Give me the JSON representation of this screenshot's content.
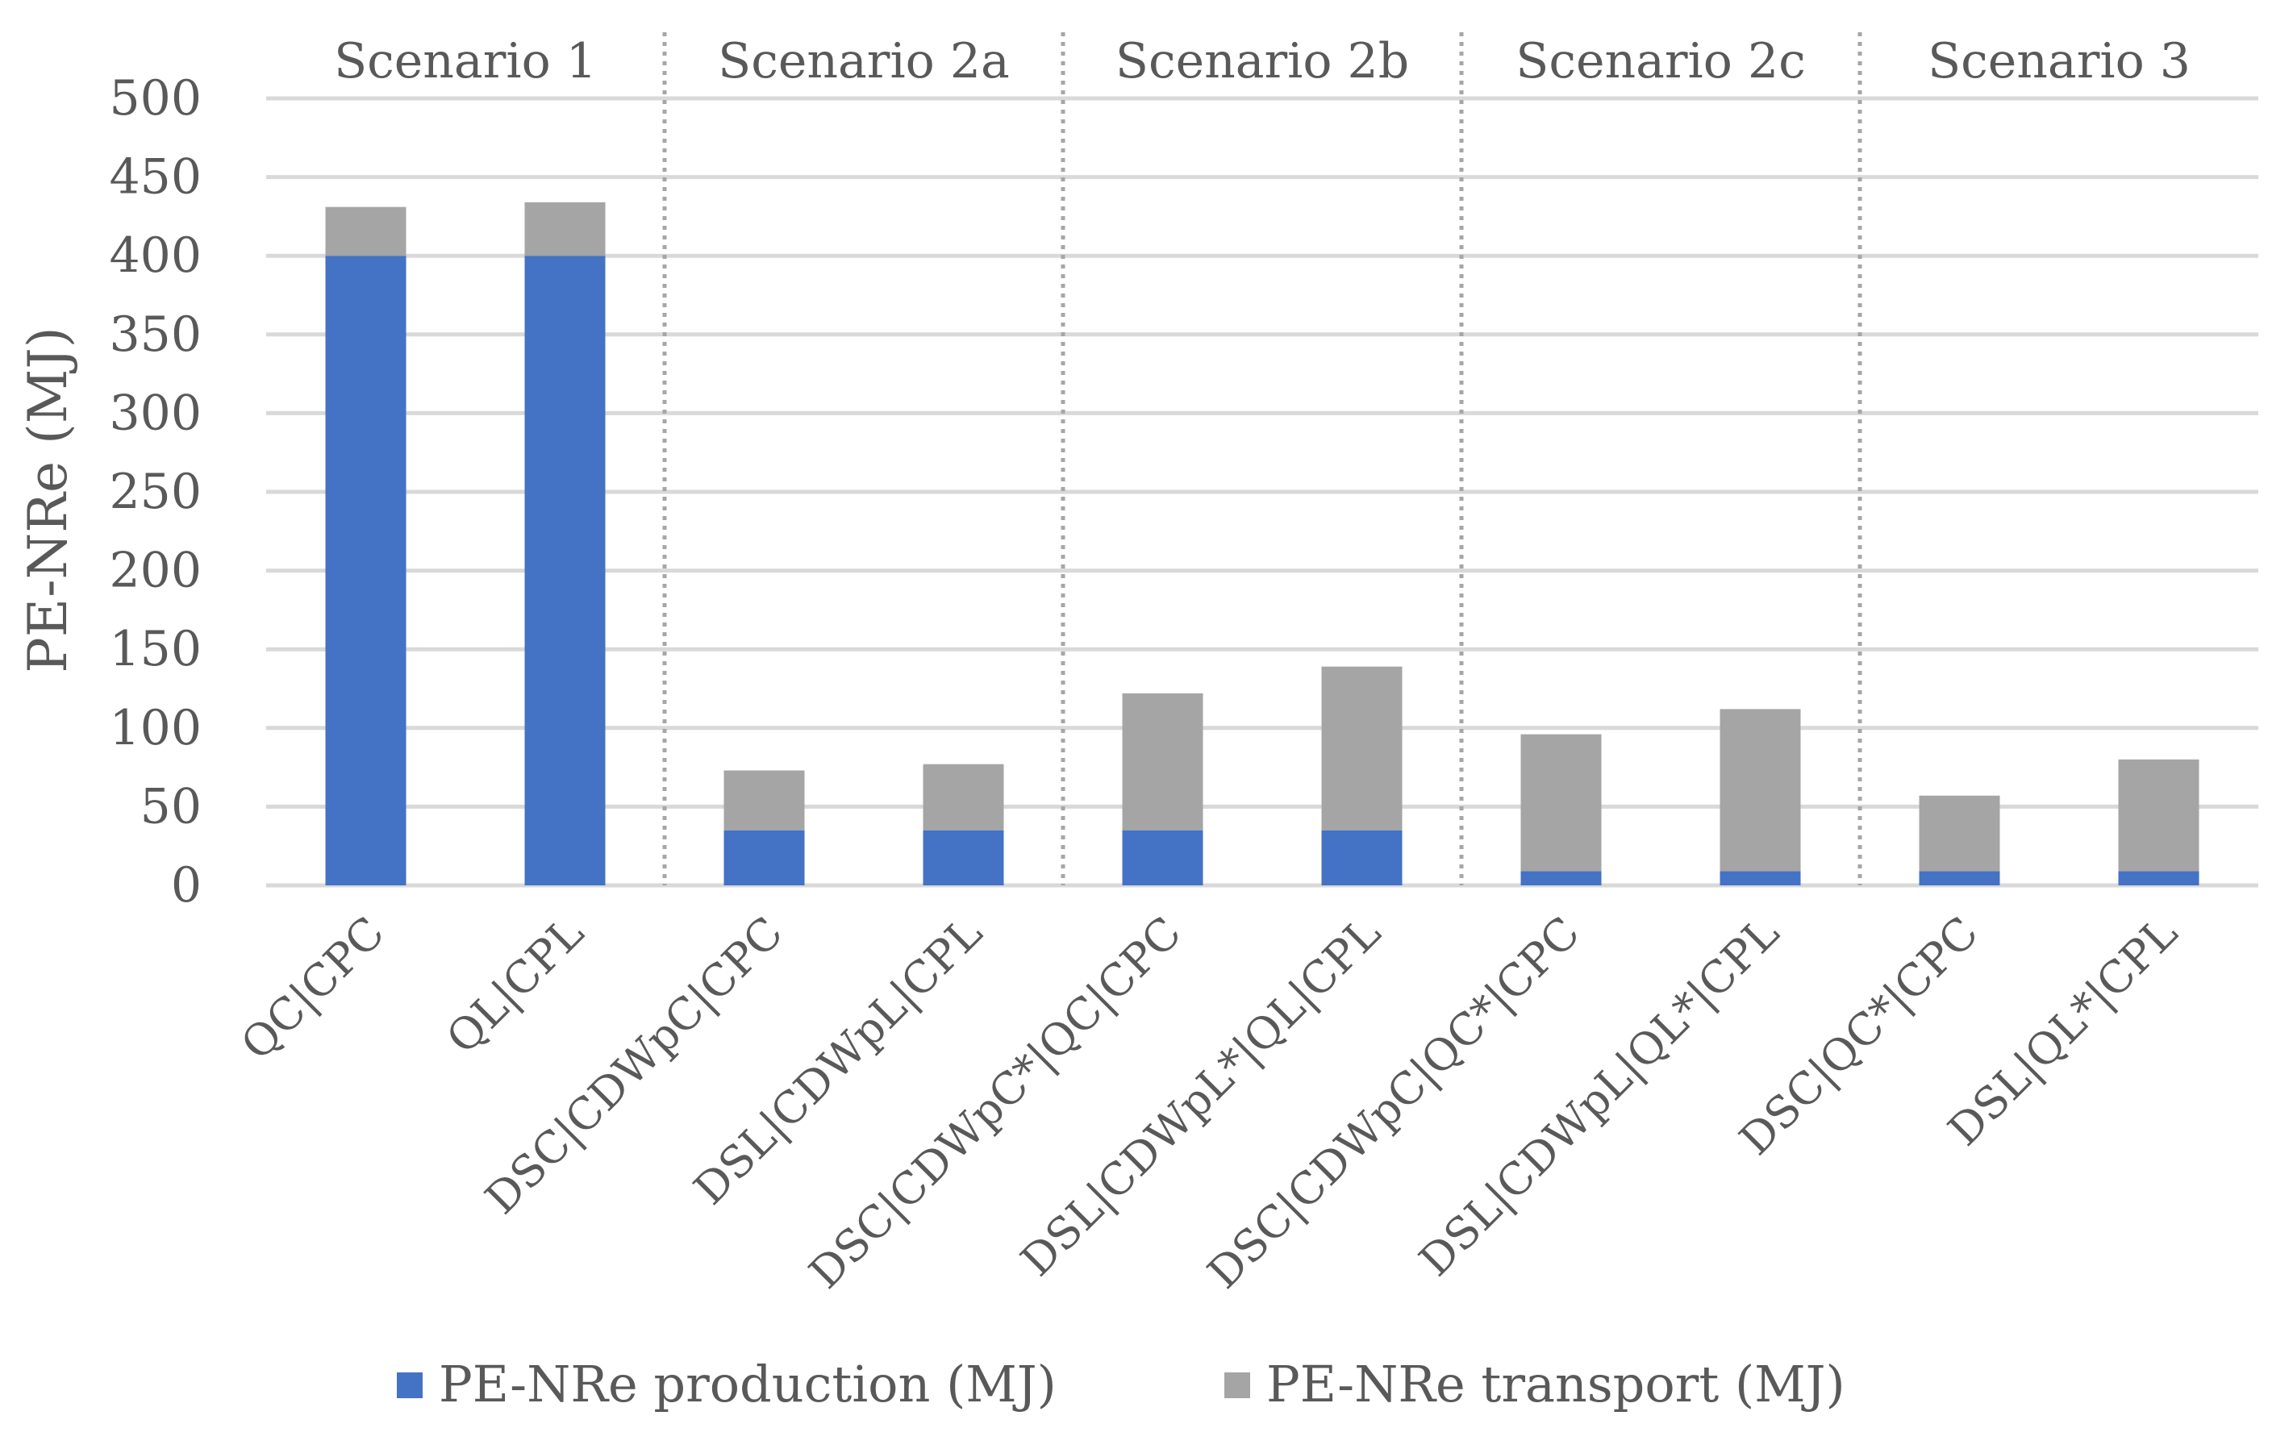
{
  "chart_data": {
    "type": "bar",
    "stacked": true,
    "title": "",
    "xlabel": "",
    "ylabel": "PE-NRe (MJ)",
    "ylim": [
      0,
      500
    ],
    "yticks": [
      0,
      50,
      100,
      150,
      200,
      250,
      300,
      350,
      400,
      450,
      500
    ],
    "grid": true,
    "legend_position": "bottom",
    "categories": [
      "QC|CPC",
      "QL|CPL",
      "DSC|CDWpC|CPC",
      "DSL|CDWpL|CPL",
      "DSC|CDWpC*|QC|CPC",
      "DSL|CDWpL*|QL|CPL",
      "DSC|CDWpC|QC*|CPC",
      "DSL|CDWpL|QL*|CPL",
      "DSC|QC*|CPC",
      "DSL|QL*|CPL"
    ],
    "groups": [
      {
        "label": "Scenario 1",
        "categories": [
          0,
          1
        ]
      },
      {
        "label": "Scenario 2a",
        "categories": [
          2,
          3
        ]
      },
      {
        "label": "Scenario 2b",
        "categories": [
          4,
          5
        ]
      },
      {
        "label": "Scenario 2c",
        "categories": [
          6,
          7
        ]
      },
      {
        "label": "Scenario 3",
        "categories": [
          8,
          9
        ]
      }
    ],
    "series": [
      {
        "name": "PE-NRe production (MJ)",
        "color": "#4472C4",
        "values": [
          400,
          400,
          35,
          35,
          35,
          35,
          9,
          9,
          9,
          9
        ]
      },
      {
        "name": "PE-NRe transport (MJ)",
        "color": "#A5A5A5",
        "values": [
          31,
          34,
          38,
          42,
          87,
          104,
          87,
          103,
          48,
          71
        ]
      }
    ]
  },
  "colors": {
    "grid": "#D9D9D9",
    "separator": "#A6A6A6",
    "text": "#595959"
  }
}
